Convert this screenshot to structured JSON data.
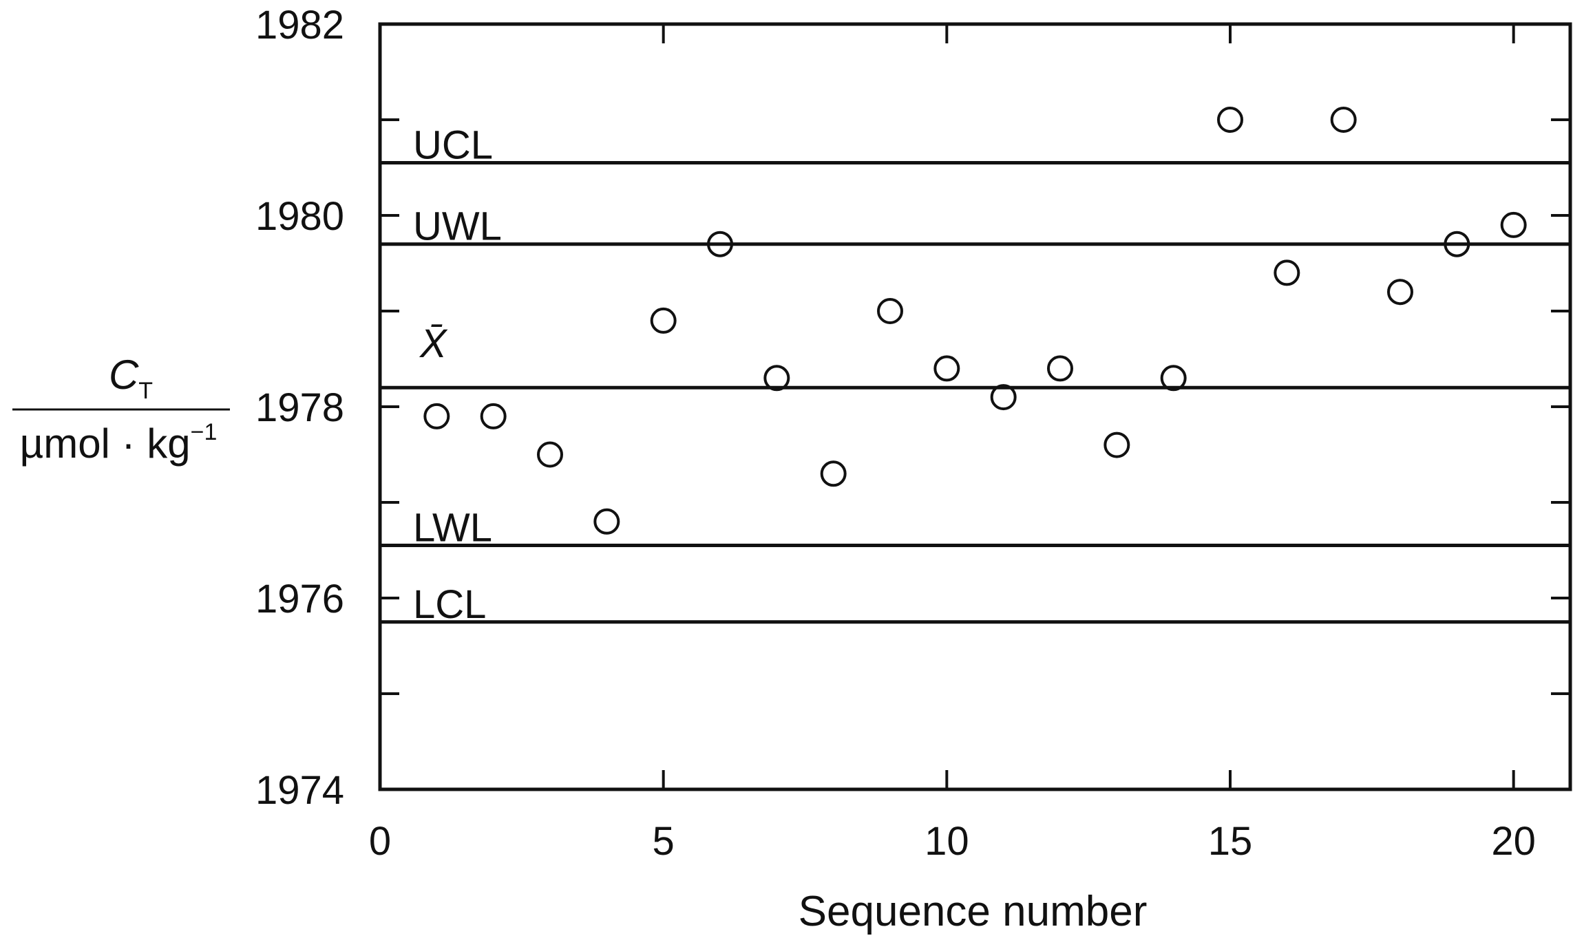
{
  "chart_data": {
    "type": "scatter",
    "xlabel": "Sequence number",
    "ylabel": {
      "symbol": "C",
      "subscript": "T",
      "unit_main": "µmol · kg",
      "unit_exponent": "−1"
    },
    "xlim": [
      0,
      21
    ],
    "ylim": [
      1974,
      1982
    ],
    "x_ticks": [
      0,
      5,
      10,
      15,
      20
    ],
    "x_tick_labels": [
      "0",
      "5",
      "10",
      "15",
      "20"
    ],
    "y_ticks": [
      1974,
      1976,
      1978,
      1980,
      1982
    ],
    "y_tick_labels": [
      "1974",
      "1976",
      "1978",
      "1980",
      "1982"
    ],
    "y_minor_ticks": [
      1975,
      1977,
      1979,
      1981
    ],
    "grid": false,
    "marker": "open-circle",
    "control_lines": [
      {
        "label": "UCL",
        "value": 1980.55
      },
      {
        "label": "UWL",
        "value": 1979.7
      },
      {
        "label": "X̄",
        "value": 1978.2
      },
      {
        "label": "LWL",
        "value": 1976.55
      },
      {
        "label": "LCL",
        "value": 1975.75
      }
    ],
    "series": [
      {
        "x": [
          1,
          2,
          3,
          4,
          5,
          6,
          7,
          8,
          9,
          10,
          11,
          12,
          13,
          14,
          15,
          16,
          17,
          18,
          19,
          20
        ],
        "y": [
          1977.9,
          1977.9,
          1977.5,
          1976.8,
          1978.9,
          1979.7,
          1978.3,
          1977.3,
          1979.0,
          1978.4,
          1978.1,
          1978.4,
          1977.6,
          1978.3,
          1981.0,
          1979.4,
          1981.0,
          1979.2,
          1979.7,
          1979.9
        ]
      }
    ]
  }
}
